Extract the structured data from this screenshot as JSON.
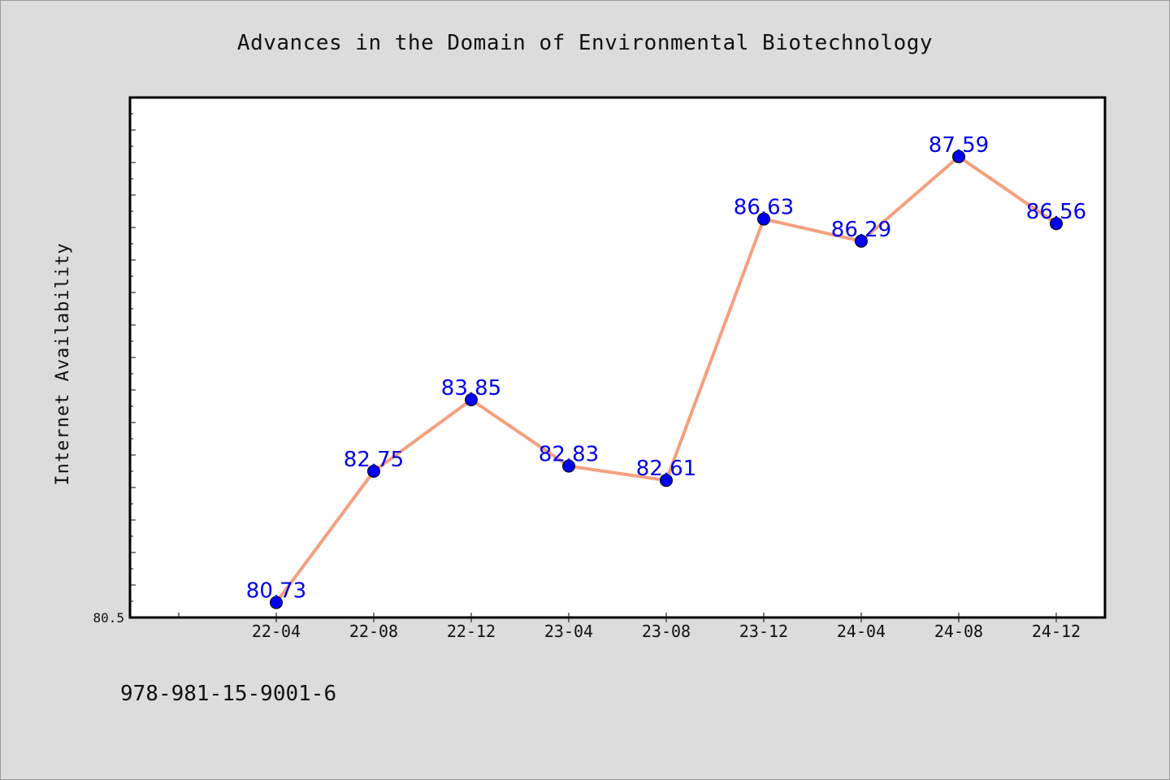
{
  "chart_data": {
    "type": "line",
    "title": "Advances in the Domain of Environmental Biotechnology",
    "ylabel": "Internet Availability",
    "xlabel": "",
    "categories": [
      "22-04",
      "22-08",
      "22-12",
      "23-04",
      "23-08",
      "23-12",
      "24-04",
      "24-08",
      "24-12"
    ],
    "values": [
      80.73,
      82.75,
      83.85,
      82.83,
      82.61,
      86.63,
      86.29,
      87.59,
      86.56
    ],
    "data_labels": [
      "80.73",
      "82.75",
      "83.85",
      "82.83",
      "82.61",
      "86.63",
      "86.29",
      "87.59",
      "86.56"
    ],
    "ylim": [
      80.5,
      88.5
    ],
    "ytick_label": "80.5",
    "grid": false,
    "line_color": "#f4a07e",
    "marker_color": "#0000ee",
    "label_color": "#0000ee"
  },
  "footer": {
    "isbn": "978-981-15-9001-6"
  }
}
